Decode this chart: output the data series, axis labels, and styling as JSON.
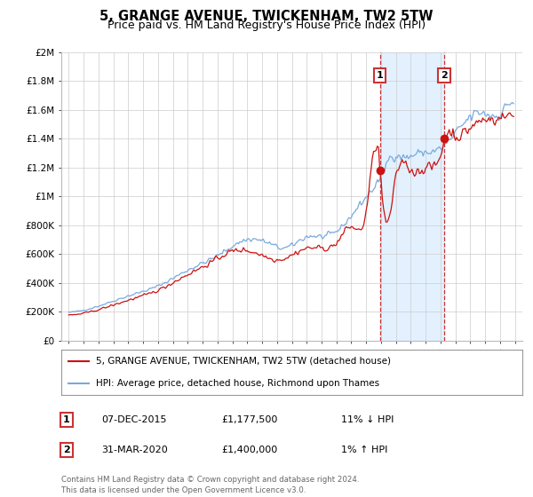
{
  "title": "5, GRANGE AVENUE, TWICKENHAM, TW2 5TW",
  "subtitle": "Price paid vs. HM Land Registry's House Price Index (HPI)",
  "title_fontsize": 10.5,
  "subtitle_fontsize": 9,
  "background_color": "#ffffff",
  "plot_bg_color": "#ffffff",
  "grid_color": "#cccccc",
  "ylim": [
    0,
    2000000
  ],
  "yticks": [
    0,
    200000,
    400000,
    600000,
    800000,
    1000000,
    1200000,
    1400000,
    1600000,
    1800000,
    2000000
  ],
  "ytick_labels": [
    "£0",
    "£200K",
    "£400K",
    "£600K",
    "£800K",
    "£1M",
    "£1.2M",
    "£1.4M",
    "£1.6M",
    "£1.8M",
    "£2M"
  ],
  "hpi_color": "#7aaadd",
  "price_color": "#cc1111",
  "dashed_color": "#cc3333",
  "shade_color": "#ddeeff",
  "marker1_x": 2015.92,
  "marker2_x": 2020.25,
  "marker1_price": 1177500,
  "marker2_price": 1400000,
  "legend_label_price": "5, GRANGE AVENUE, TWICKENHAM, TW2 5TW (detached house)",
  "legend_label_hpi": "HPI: Average price, detached house, Richmond upon Thames",
  "table_row1": [
    "1",
    "07-DEC-2015",
    "£1,177,500",
    "11% ↓ HPI"
  ],
  "table_row2": [
    "2",
    "31-MAR-2020",
    "£1,400,000",
    "1% ↑ HPI"
  ],
  "footer": "Contains HM Land Registry data © Crown copyright and database right 2024.\nThis data is licensed under the Open Government Licence v3.0.",
  "xstart": 1994.5,
  "xend": 2025.5
}
